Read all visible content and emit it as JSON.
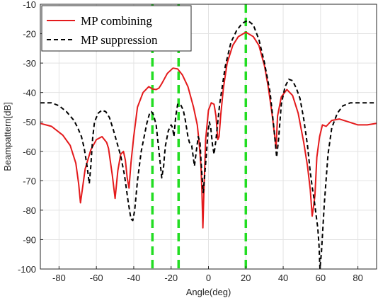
{
  "chart_data": {
    "type": "line",
    "xlabel": "Angle(deg)",
    "ylabel": "Beampattern[dB]",
    "xlim": [
      -90,
      90
    ],
    "ylim": [
      -100,
      -10
    ],
    "grid": true,
    "legend_position": "top-left",
    "x_ticks": [
      -80,
      -60,
      -40,
      -20,
      0,
      20,
      40,
      60,
      80
    ],
    "y_ticks": [
      -10,
      -20,
      -30,
      -40,
      -50,
      -60,
      -70,
      -80,
      -90,
      -100
    ],
    "series": [
      {
        "name": "MP combining",
        "color": "#e41a1c",
        "style": "solid",
        "x": [
          -90,
          -84,
          -78,
          -74,
          -71,
          -69.5,
          -68.5,
          -66,
          -63,
          -60,
          -57,
          -54.5,
          -53.5,
          -51.5,
          -50,
          -48.5,
          -47,
          -45.5,
          -44.5,
          -43.5,
          -42.5,
          -41.5,
          -40,
          -38,
          -35,
          -32,
          -30,
          -28,
          -26.5,
          -25,
          -22,
          -19,
          -16.5,
          -14,
          -11,
          -8,
          -6,
          -5,
          -4,
          -3.5,
          -3,
          -2.5,
          -1.5,
          0,
          1.5,
          3,
          4,
          5,
          5.7,
          6.5,
          8,
          10,
          13,
          16,
          20,
          24,
          27,
          30,
          32,
          34,
          35.5,
          36.2,
          37,
          39,
          42,
          45,
          48,
          51,
          53,
          54.5,
          55.5,
          56.2,
          57,
          58,
          59.5,
          61,
          63,
          66,
          70,
          75,
          80,
          85,
          90
        ],
        "y": [
          -50.5,
          -51.5,
          -54.5,
          -58,
          -64,
          -71,
          -77.5,
          -66,
          -59.5,
          -56,
          -55,
          -57,
          -59,
          -68,
          -76,
          -66.5,
          -61,
          -60,
          -63,
          -69,
          -72.5,
          -64,
          -55,
          -45,
          -40,
          -38,
          -38.8,
          -39,
          -38.5,
          -37,
          -33.5,
          -31.7,
          -32,
          -34,
          -38,
          -45,
          -51,
          -57,
          -65,
          -74,
          -86,
          -75,
          -56,
          -46,
          -43.5,
          -44,
          -48,
          -56,
          -55,
          -48,
          -38.5,
          -30,
          -24,
          -21,
          -19.5,
          -21,
          -24,
          -31,
          -38,
          -47,
          -55,
          -59,
          -48,
          -41.5,
          -39,
          -41,
          -47,
          -57,
          -65,
          -73,
          -82,
          -79,
          -75,
          -62,
          -55,
          -51,
          -51.5,
          -49.5,
          -49,
          -50,
          -51,
          -51,
          -50.5
        ]
      },
      {
        "name": "MP suppression",
        "color": "#000000",
        "style": "dashed",
        "x": [
          -90,
          -84,
          -80,
          -76,
          -72,
          -70,
          -68,
          -66.5,
          -65,
          -63.8,
          -63,
          -62,
          -61,
          -59,
          -57,
          -55,
          -53,
          -51,
          -49,
          -47,
          -45,
          -43,
          -41.5,
          -40.5,
          -39.5,
          -38,
          -36,
          -33,
          -31.5,
          -30.5,
          -29.5,
          -28,
          -26.5,
          -25,
          -24,
          -23.5,
          -23,
          -21.5,
          -20,
          -19.5,
          -19,
          -18.5,
          -17.5,
          -16.5,
          -15,
          -13.5,
          -12.5,
          -11,
          -10.2,
          -9,
          -7.5,
          -6.5,
          -5.5,
          -4.5,
          -4,
          -3.5,
          -2.8,
          -2,
          -1,
          -0.2,
          0.5,
          1.2,
          2.2,
          3,
          4,
          6,
          9,
          12,
          15,
          18,
          21,
          24,
          27,
          30,
          33,
          35,
          36.5,
          37.5,
          39,
          41,
          43,
          45,
          47,
          49,
          51,
          53,
          54.5,
          55.5,
          56.5,
          57.5,
          58.5,
          59.2,
          59.7,
          60.5,
          62,
          64,
          66,
          69,
          72,
          76,
          80,
          85,
          90
        ],
        "y": [
          -43.5,
          -43.5,
          -44.5,
          -46.5,
          -49.5,
          -52,
          -55,
          -59,
          -65,
          -71,
          -65,
          -55.5,
          -50,
          -47,
          -46,
          -46.5,
          -48.5,
          -52.5,
          -57,
          -61.5,
          -68,
          -77,
          -83,
          -83.5,
          -80,
          -70,
          -60,
          -50.5,
          -47,
          -46.5,
          -47.5,
          -51,
          -60,
          -69,
          -65,
          -61,
          -58,
          -53,
          -51,
          -51.5,
          -53,
          -55,
          -48,
          -44,
          -44,
          -46,
          -49,
          -55,
          -57,
          -58,
          -65,
          -60,
          -55,
          -57,
          -63,
          -68,
          -74,
          -68,
          -60,
          -53,
          -50,
          -52,
          -58,
          -61,
          -56,
          -44,
          -31,
          -23,
          -19,
          -16.5,
          -15.5,
          -17,
          -22,
          -30,
          -40,
          -52,
          -62,
          -56,
          -44,
          -38,
          -35.5,
          -36,
          -38.5,
          -42,
          -49,
          -58,
          -67,
          -72,
          -76,
          -81,
          -86,
          -92,
          -100,
          -94,
          -78,
          -61,
          -52,
          -47,
          -44.5,
          -43.5,
          -43.5,
          -43.5,
          -43.5
        ]
      }
    ],
    "vertical_lines": [
      {
        "x": -30,
        "color": "#22dd22",
        "style": "dashed"
      },
      {
        "x": -16,
        "color": "#22dd22",
        "style": "dashed"
      },
      {
        "x": 20,
        "color": "#22dd22",
        "style": "dashed"
      }
    ]
  }
}
